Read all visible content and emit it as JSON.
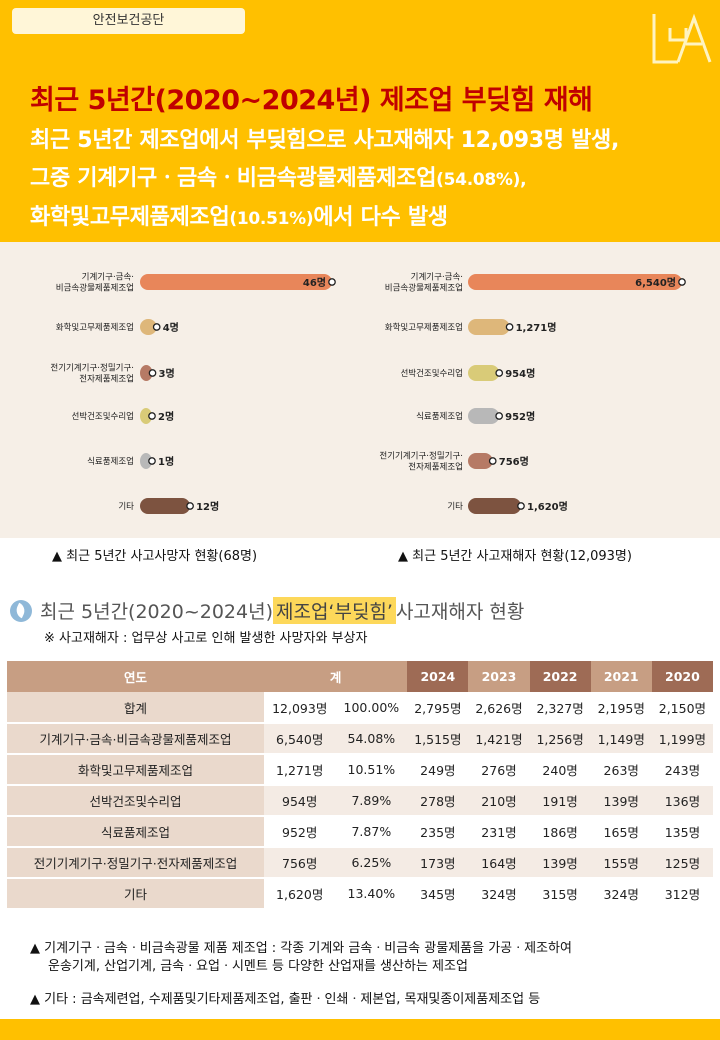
{
  "header": {
    "org": "안전보건공단",
    "title": "최근 5년간(2020~2024년) 제조업 부딪힘 재해",
    "subtitle_line1": "최근 5년간 제조업에서 부딪힘으로 사고재해자 12,093명 발생,",
    "subtitle_line2_a": "그중 기계기구ㆍ금속ㆍ비금속광물제품제조업",
    "subtitle_line2_b": "(54.08%),",
    "subtitle_line3_a": "화학및고무제품제조업",
    "subtitle_line3_b": "(10.51%)",
    "subtitle_line3_c": "에서 다수 발생"
  },
  "colors": {
    "header_bg": "#ffc000",
    "title": "#c00000",
    "chart_bg": "#f6efe7"
  },
  "chart_data": [
    {
      "type": "bar",
      "orientation": "horizontal",
      "categories": [
        "기계기구·금속·\n비금속광물제품제조업",
        "화학및고무제품제조업",
        "전기기계기구·정밀기구·\n전자제품제조업",
        "선박건조및수리업",
        "식료품제조업",
        "기타"
      ],
      "values": [
        46,
        4,
        3,
        2,
        1,
        12
      ],
      "value_labels": [
        "46명",
        "4명",
        "3명",
        "2명",
        "1명",
        "12명"
      ],
      "colors": [
        "#e8865a",
        "#deb77a",
        "#b67a65",
        "#d9cb78",
        "#b8b8b8",
        "#7d5340"
      ],
      "caption": "최근 5년간 사고사망자 현황(68명)",
      "xlim": [
        0,
        46
      ]
    },
    {
      "type": "bar",
      "orientation": "horizontal",
      "categories": [
        "기계기구·금속·\n비금속광물제품제조업",
        "화학및고무제품제조업",
        "선박건조및수리업",
        "식료품제조업",
        "전기기계기구·정밀기구·\n전자제품제조업",
        "기타"
      ],
      "values": [
        6540,
        1271,
        954,
        952,
        756,
        1620
      ],
      "value_labels": [
        "6,540명",
        "1,271명",
        "954명",
        "952명",
        "756명",
        "1,620명"
      ],
      "colors": [
        "#e8865a",
        "#deb77a",
        "#d9cb78",
        "#b8b8b8",
        "#b67a65",
        "#7d5340"
      ],
      "caption": "최근 5년간 사고재해자 현황(12,093명)",
      "xlim": [
        0,
        6540
      ]
    },
    {
      "type": "table",
      "section_title_a": "최근 5년간(2020~2024년) ",
      "section_title_hl": "제조업‘부딪힘’",
      "section_title_b": " 사고재해자 현황",
      "note": "※ 사고재해자 : 업무상 사고로 인해 발생한 사망자와 부상자",
      "columns": [
        "연도",
        "계",
        "2024",
        "2023",
        "2022",
        "2021",
        "2020"
      ],
      "rows": [
        [
          "합계",
          "12,093명",
          "100.00%",
          "2,795명",
          "2,626명",
          "2,327명",
          "2,195명",
          "2,150명"
        ],
        [
          "기계기구·금속·비금속광물제품제조업",
          "6,540명",
          "54.08%",
          "1,515명",
          "1,421명",
          "1,256명",
          "1,149명",
          "1,199명"
        ],
        [
          "화학및고무제품제조업",
          "1,271명",
          "10.51%",
          "249명",
          "276명",
          "240명",
          "263명",
          "243명"
        ],
        [
          "선박건조및수리업",
          "954명",
          "7.89%",
          "278명",
          "210명",
          "191명",
          "139명",
          "136명"
        ],
        [
          "식료품제조업",
          "952명",
          "7.87%",
          "235명",
          "231명",
          "186명",
          "165명",
          "135명"
        ],
        [
          "전기기계기구·정밀기구·전자제품제조업",
          "756명",
          "6.25%",
          "173명",
          "164명",
          "139명",
          "155명",
          "125명"
        ],
        [
          "기타",
          "1,620명",
          "13.40%",
          "345명",
          "324명",
          "315명",
          "324명",
          "312명"
        ]
      ]
    }
  ],
  "footnotes": {
    "fn1_line1": "▲ 기계기구ㆍ금속ㆍ비금속광물 제품 제조업 : 각종 기계와 금속ㆍ비금속 광물제품을 가공ㆍ제조하여",
    "fn1_line2": "운송기계, 산업기계, 금속ㆍ요업ㆍ시멘트 등 다양한 산업재를 생산하는 제조업",
    "fn2": "▲ 기타 : 금속제련업, 수제품및기타제품제조업, 출판ㆍ인쇄ㆍ제본업, 목재및종이제품제조업 등"
  }
}
